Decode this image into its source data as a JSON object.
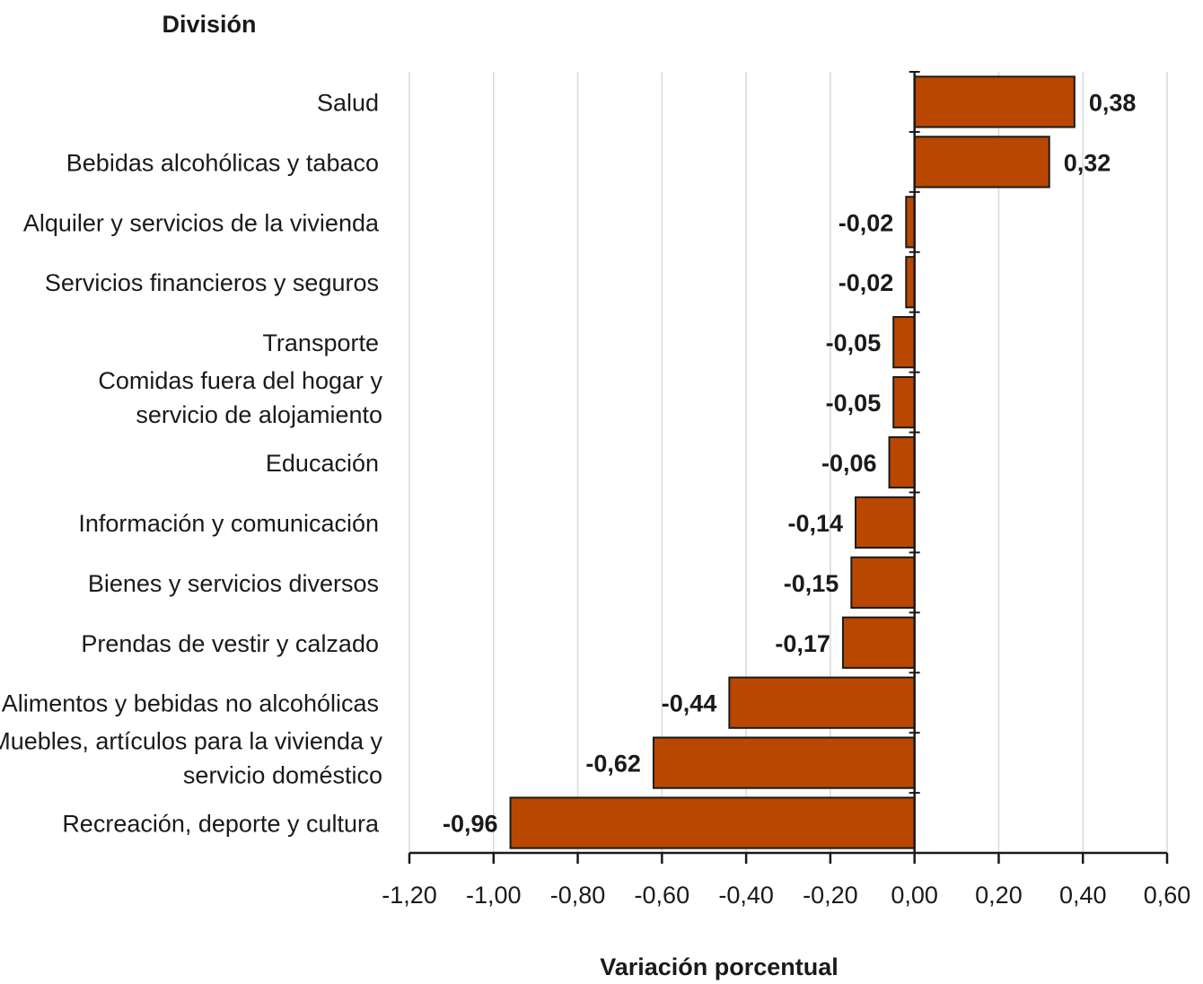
{
  "chart_data": {
    "type": "bar",
    "orientation": "horizontal",
    "title": "",
    "ylabel": "División",
    "xlabel": "Variación porcentual",
    "categories": [
      "Salud",
      "Bebidas alcohólicas y tabaco",
      "Alquiler y servicios de la vivienda",
      "Servicios financieros y seguros",
      "Transporte",
      "Comidas fuera del hogar y\nservicio de alojamiento",
      "Educación",
      "Información y comunicación",
      "Bienes y servicios diversos",
      "Prendas de vestir y calzado",
      "Alimentos y bebidas no alcohólicas",
      "Muebles, artículos para la vivienda y\nservicio doméstico",
      "Recreación, deporte y cultura"
    ],
    "values": [
      0.38,
      0.32,
      -0.02,
      -0.02,
      -0.05,
      -0.05,
      -0.06,
      -0.14,
      -0.15,
      -0.17,
      -0.44,
      -0.62,
      -0.96
    ],
    "value_labels": [
      "0,38",
      "0,32",
      "-0,02",
      "-0,02",
      "-0,05",
      "-0,05",
      "-0,06",
      "-0,14",
      "-0,15",
      "-0,17",
      "-0,44",
      "-0,62",
      "-0,96"
    ],
    "xlim": [
      -1.2,
      0.6
    ],
    "xticks": [
      -1.2,
      -1.0,
      -0.8,
      -0.6,
      -0.4,
      -0.2,
      0.0,
      0.2,
      0.4,
      0.6
    ],
    "xtick_labels": [
      "-1,20",
      "-1,00",
      "-0,80",
      "-0,60",
      "-0,40",
      "-0,20",
      "0,00",
      "0,20",
      "0,40",
      "0,60"
    ],
    "grid": true,
    "legend": "none",
    "bar_color": "#b94700",
    "bar_edge_color": "#1a1a1a",
    "grid_color": "#d9d9d9"
  }
}
